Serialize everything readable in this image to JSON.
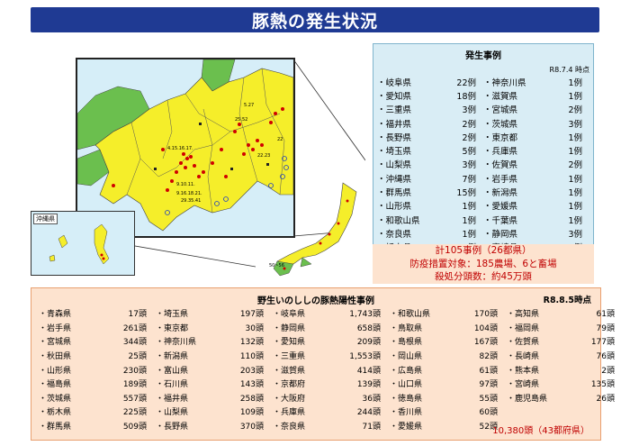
{
  "title": "豚熱の発生状況",
  "map": {
    "inset_label": "沖縄県",
    "labels": [
      "5.27",
      "4.15.16.17.",
      "25.52",
      "22.23",
      "9.10.11.",
      "9.16.18.21.",
      "29.35.41",
      "22",
      "50~56"
    ]
  },
  "cases": {
    "title": "発生事例",
    "date": "R8.7.4 時点",
    "rows": [
      [
        {
          "pref": "・岐阜県",
          "count": "22例"
        },
        {
          "pref": "・神奈川県",
          "count": "1例"
        }
      ],
      [
        {
          "pref": "・愛知県",
          "count": "18例"
        },
        {
          "pref": "・滋賀県",
          "count": "1例"
        }
      ],
      [
        {
          "pref": "・三重県",
          "count": "3例"
        },
        {
          "pref": "・宮城県",
          "count": "2例"
        }
      ],
      [
        {
          "pref": "・福井県",
          "count": "2例"
        },
        {
          "pref": "・茨城県",
          "count": "3例"
        }
      ],
      [
        {
          "pref": "・長野県",
          "count": "2例"
        },
        {
          "pref": "・東京都",
          "count": "1例"
        }
      ],
      [
        {
          "pref": "・埼玉県",
          "count": "5例"
        },
        {
          "pref": "・兵庫県",
          "count": "1例"
        }
      ],
      [
        {
          "pref": "・山梨県",
          "count": "3例"
        },
        {
          "pref": "・佐賀県",
          "count": "2例"
        }
      ],
      [
        {
          "pref": "・沖縄県",
          "count": "7例"
        },
        {
          "pref": "・岩手県",
          "count": "1例"
        }
      ],
      [
        {
          "pref": "・群馬県",
          "count": "15例"
        },
        {
          "pref": "・新潟県",
          "count": "1例"
        }
      ],
      [
        {
          "pref": "・山形県",
          "count": "1例"
        },
        {
          "pref": "・愛媛県",
          "count": "1例"
        }
      ],
      [
        {
          "pref": "・和歌山県",
          "count": "1例"
        },
        {
          "pref": "・千葉県",
          "count": "1例"
        }
      ],
      [
        {
          "pref": "・奈良県",
          "count": "1例"
        },
        {
          "pref": "・静岡県",
          "count": "3例"
        }
      ],
      [
        {
          "pref": "・栃木県",
          "count": "6例"
        },
        {
          "pref": "・宮崎県",
          "count": "1例"
        }
      ]
    ],
    "summary": [
      "計105事例（26都県）",
      "防疫措置対象：185農場、6と畜場",
      "殺処分頭数：約45万頭"
    ]
  },
  "boar": {
    "title": "野生いのししの豚熱陽性事例",
    "date": "R8.8.5時点",
    "columns": [
      [
        {
          "p": "・青森県",
          "c": "17頭"
        },
        {
          "p": "・岩手県",
          "c": "261頭"
        },
        {
          "p": "・宮城県",
          "c": "344頭"
        },
        {
          "p": "・秋田県",
          "c": "25頭"
        },
        {
          "p": "・山形県",
          "c": "230頭"
        },
        {
          "p": "・福島県",
          "c": "189頭"
        },
        {
          "p": "・茨城県",
          "c": "557頭"
        },
        {
          "p": "・栃木県",
          "c": "225頭"
        },
        {
          "p": "・群馬県",
          "c": "509頭"
        }
      ],
      [
        {
          "p": "・埼玉県",
          "c": "197頭"
        },
        {
          "p": "・東京都",
          "c": "30頭"
        },
        {
          "p": "・神奈川県",
          "c": "132頭"
        },
        {
          "p": "・新潟県",
          "c": "110頭"
        },
        {
          "p": "・富山県",
          "c": "203頭"
        },
        {
          "p": "・石川県",
          "c": "143頭"
        },
        {
          "p": "・福井県",
          "c": "258頭"
        },
        {
          "p": "・山梨県",
          "c": "109頭"
        },
        {
          "p": "・長野県",
          "c": "370頭"
        }
      ],
      [
        {
          "p": "・岐阜県",
          "c": "1,743頭"
        },
        {
          "p": "・静岡県",
          "c": "658頭"
        },
        {
          "p": "・愛知県",
          "c": "209頭"
        },
        {
          "p": "・三重県",
          "c": "1,553頭"
        },
        {
          "p": "・滋賀県",
          "c": "414頭"
        },
        {
          "p": "・京都府",
          "c": "139頭"
        },
        {
          "p": "・大阪府",
          "c": "36頭"
        },
        {
          "p": "・兵庫県",
          "c": "244頭"
        },
        {
          "p": "・奈良県",
          "c": "71頭"
        }
      ],
      [
        {
          "p": "・和歌山県",
          "c": "170頭"
        },
        {
          "p": "・鳥取県",
          "c": "104頭"
        },
        {
          "p": "・島根県",
          "c": "167頭"
        },
        {
          "p": "・岡山県",
          "c": "82頭"
        },
        {
          "p": "・広島県",
          "c": "61頭"
        },
        {
          "p": "・山口県",
          "c": "97頭"
        },
        {
          "p": "・徳島県",
          "c": "55頭"
        },
        {
          "p": "・香川県",
          "c": "60頭"
        },
        {
          "p": "・愛媛県",
          "c": "52頭"
        }
      ],
      [
        {
          "p": "・高知県",
          "c": "61頭"
        },
        {
          "p": "・福岡県",
          "c": "79頭"
        },
        {
          "p": "・佐賀県",
          "c": "177頭"
        },
        {
          "p": "・長崎県",
          "c": "76頭"
        },
        {
          "p": "・熊本県",
          "c": "2頭"
        },
        {
          "p": "・宮崎県",
          "c": "135頭"
        },
        {
          "p": "・鹿児島県",
          "c": "26頭"
        }
      ]
    ],
    "total": "10,380頭（43都府県）"
  },
  "colors": {
    "title_bg": "#1f3a93",
    "yellow": "#f5ee2a",
    "green": "#6bbf4e",
    "sea": "#d6eef8",
    "red": "#c00000"
  }
}
